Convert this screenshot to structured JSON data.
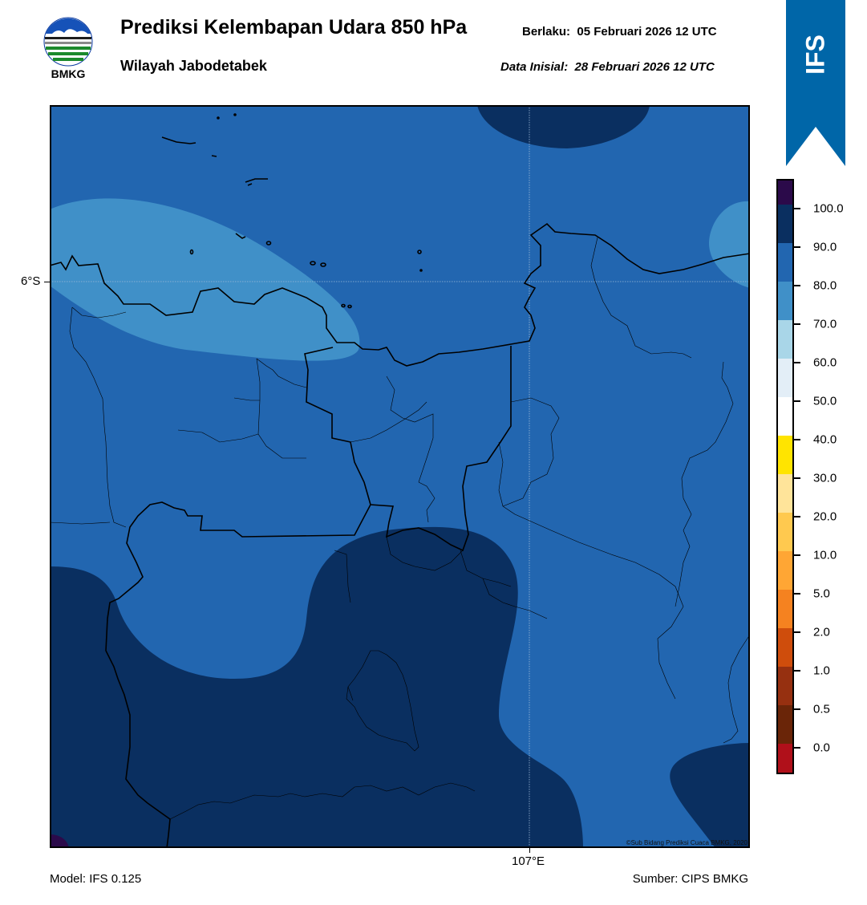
{
  "header": {
    "logo_text": "BMKG",
    "title": "Prediksi Kelembapan Udara 850 hPa",
    "subtitle": "Wilayah Jabodetabek",
    "valid_label": "Berlaku:",
    "valid_time": "05 Februari 2026 12 UTC",
    "init_label": "Data Inisial:",
    "init_time": "28 Februari 2026 12 UTC"
  },
  "badge": {
    "text": "IFS",
    "color": "#0066a8"
  },
  "map": {
    "lat_label": "6°S",
    "lon_label": "107°E",
    "copyright": "©Sub Bidang Prediksi Cuaca BMKG, 2020",
    "colors": {
      "band_90_100": "#0a2f60",
      "band_80_90": "#2266b0",
      "band_70_80": "#4090c8",
      "band_100": "#2b0a4a"
    }
  },
  "colorbar": {
    "labels": [
      "100.0",
      "90.0",
      "80.0",
      "70.0",
      "60.0",
      "50.0",
      "40.0",
      "30.0",
      "20.0",
      "10.0",
      "5.0",
      "2.0",
      "1.0",
      "0.5",
      "0.0"
    ],
    "colors": [
      "#2b0a4a",
      "#0a2f60",
      "#2266b0",
      "#4090c8",
      "#a9d6e8",
      "#e3eef7",
      "#ffffff",
      "#ffe400",
      "#ffe49a",
      "#ffc94f",
      "#ffa634",
      "#f58220",
      "#cf4d0c",
      "#963010",
      "#6a2508",
      "#b0101a",
      "#e73c31"
    ]
  },
  "footer": {
    "model": "Model: IFS 0.125",
    "source": "Sumber: CIPS BMKG"
  }
}
